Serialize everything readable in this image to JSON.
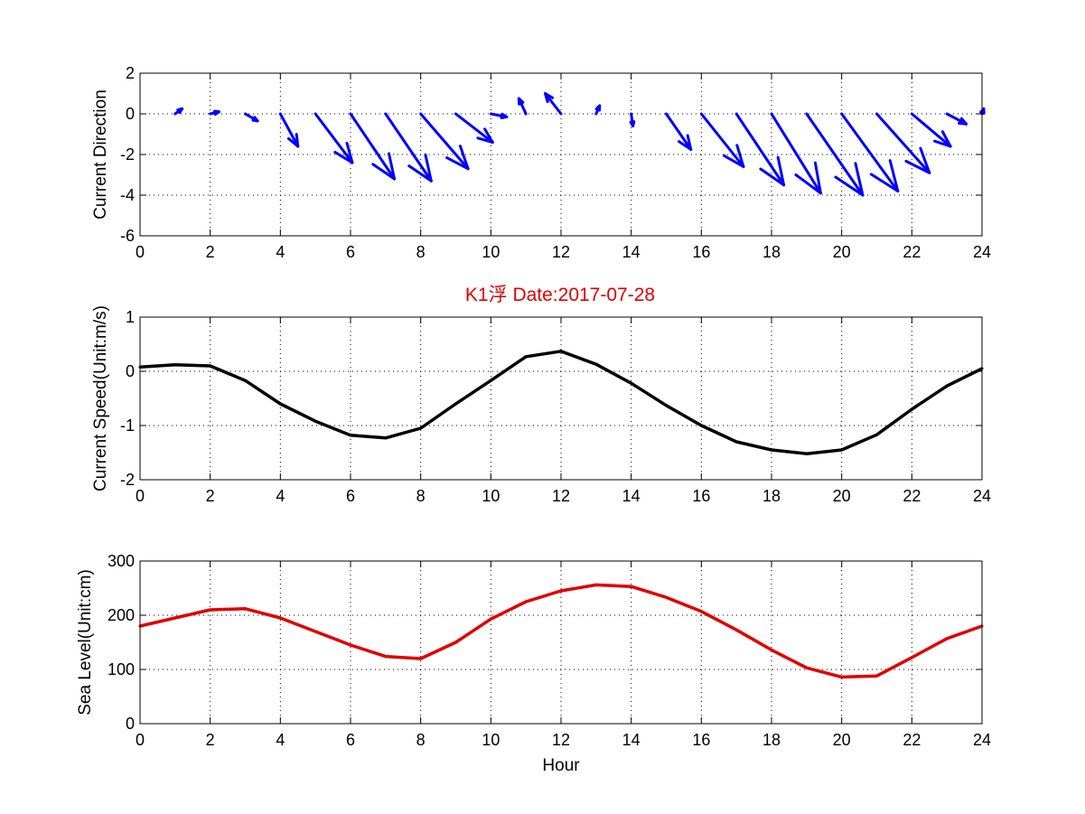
{
  "figure": {
    "title": "K1浮    Date:2017-07-28",
    "title_color": "#e00000"
  },
  "chart_data": [
    {
      "type": "quiver",
      "id": "direction",
      "xlabel": "",
      "ylabel": "Current Direction",
      "xlim": [
        0,
        24
      ],
      "ylim": [
        -6,
        2
      ],
      "xticks": [
        0,
        2,
        4,
        6,
        8,
        10,
        12,
        14,
        16,
        18,
        20,
        22,
        24
      ],
      "yticks": [
        -6,
        -4,
        -2,
        0,
        2
      ],
      "grid": true,
      "color": "#0000ff",
      "arrows": [
        {
          "x": 1,
          "u": 0.2,
          "v": 0.25
        },
        {
          "x": 2,
          "u": 0.25,
          "v": 0.1
        },
        {
          "x": 3,
          "u": 0.35,
          "v": -0.35
        },
        {
          "x": 4,
          "u": 0.5,
          "v": -1.6
        },
        {
          "x": 5,
          "u": 1.05,
          "v": -2.4
        },
        {
          "x": 6,
          "u": 1.25,
          "v": -3.2
        },
        {
          "x": 7,
          "u": 1.3,
          "v": -3.3
        },
        {
          "x": 8,
          "u": 1.35,
          "v": -2.7
        },
        {
          "x": 9,
          "u": 1.05,
          "v": -1.4
        },
        {
          "x": 10,
          "u": 0.45,
          "v": -0.15
        },
        {
          "x": 11,
          "u": -0.2,
          "v": 0.75
        },
        {
          "x": 12,
          "u": -0.45,
          "v": 1.0
        },
        {
          "x": 13,
          "u": 0.1,
          "v": 0.4
        },
        {
          "x": 14,
          "u": 0.05,
          "v": -0.6
        },
        {
          "x": 15,
          "u": 0.7,
          "v": -1.75
        },
        {
          "x": 16,
          "u": 1.2,
          "v": -2.6
        },
        {
          "x": 17,
          "u": 1.35,
          "v": -3.5
        },
        {
          "x": 18,
          "u": 1.4,
          "v": -3.9
        },
        {
          "x": 19,
          "u": 1.6,
          "v": -4.0
        },
        {
          "x": 20,
          "u": 1.6,
          "v": -3.8
        },
        {
          "x": 21,
          "u": 1.5,
          "v": -2.9
        },
        {
          "x": 22,
          "u": 1.1,
          "v": -1.6
        },
        {
          "x": 23,
          "u": 0.55,
          "v": -0.5
        },
        {
          "x": 24,
          "u": 0.05,
          "v": 0.25
        }
      ]
    },
    {
      "type": "line",
      "id": "speed",
      "xlabel": "",
      "ylabel": "Current Speed(Unit:m/s)",
      "xlim": [
        0,
        24
      ],
      "ylim": [
        -2,
        1
      ],
      "xticks": [
        0,
        2,
        4,
        6,
        8,
        10,
        12,
        14,
        16,
        18,
        20,
        22,
        24
      ],
      "yticks": [
        -2,
        -1,
        0,
        1
      ],
      "grid": true,
      "color": "#000000",
      "x": [
        0,
        1,
        2,
        3,
        4,
        5,
        6,
        7,
        8,
        9,
        10,
        11,
        12,
        13,
        14,
        15,
        16,
        17,
        18,
        19,
        20,
        21,
        22,
        23,
        24
      ],
      "y": [
        0.08,
        0.12,
        0.1,
        -0.17,
        -0.6,
        -0.92,
        -1.18,
        -1.23,
        -1.05,
        -0.6,
        -0.17,
        0.27,
        0.37,
        0.13,
        -0.22,
        -0.63,
        -1.0,
        -1.3,
        -1.45,
        -1.52,
        -1.45,
        -1.17,
        -0.7,
        -0.27,
        0.05
      ]
    },
    {
      "type": "line",
      "id": "sealevel",
      "xlabel": "Hour",
      "ylabel": "Sea Level(Unit:cm)",
      "xlim": [
        0,
        24
      ],
      "ylim": [
        0,
        300
      ],
      "xticks": [
        0,
        2,
        4,
        6,
        8,
        10,
        12,
        14,
        16,
        18,
        20,
        22,
        24
      ],
      "yticks": [
        0,
        100,
        200,
        300
      ],
      "grid": true,
      "color": "#e00000",
      "x": [
        0,
        1,
        2,
        3,
        4,
        5,
        6,
        7,
        8,
        9,
        10,
        11,
        12,
        13,
        14,
        15,
        16,
        17,
        18,
        19,
        20,
        21,
        22,
        23,
        24
      ],
      "y": [
        180,
        195,
        210,
        212,
        195,
        170,
        145,
        124,
        120,
        150,
        193,
        225,
        245,
        256,
        253,
        233,
        207,
        173,
        136,
        103,
        86,
        88,
        122,
        157,
        180
      ]
    }
  ]
}
